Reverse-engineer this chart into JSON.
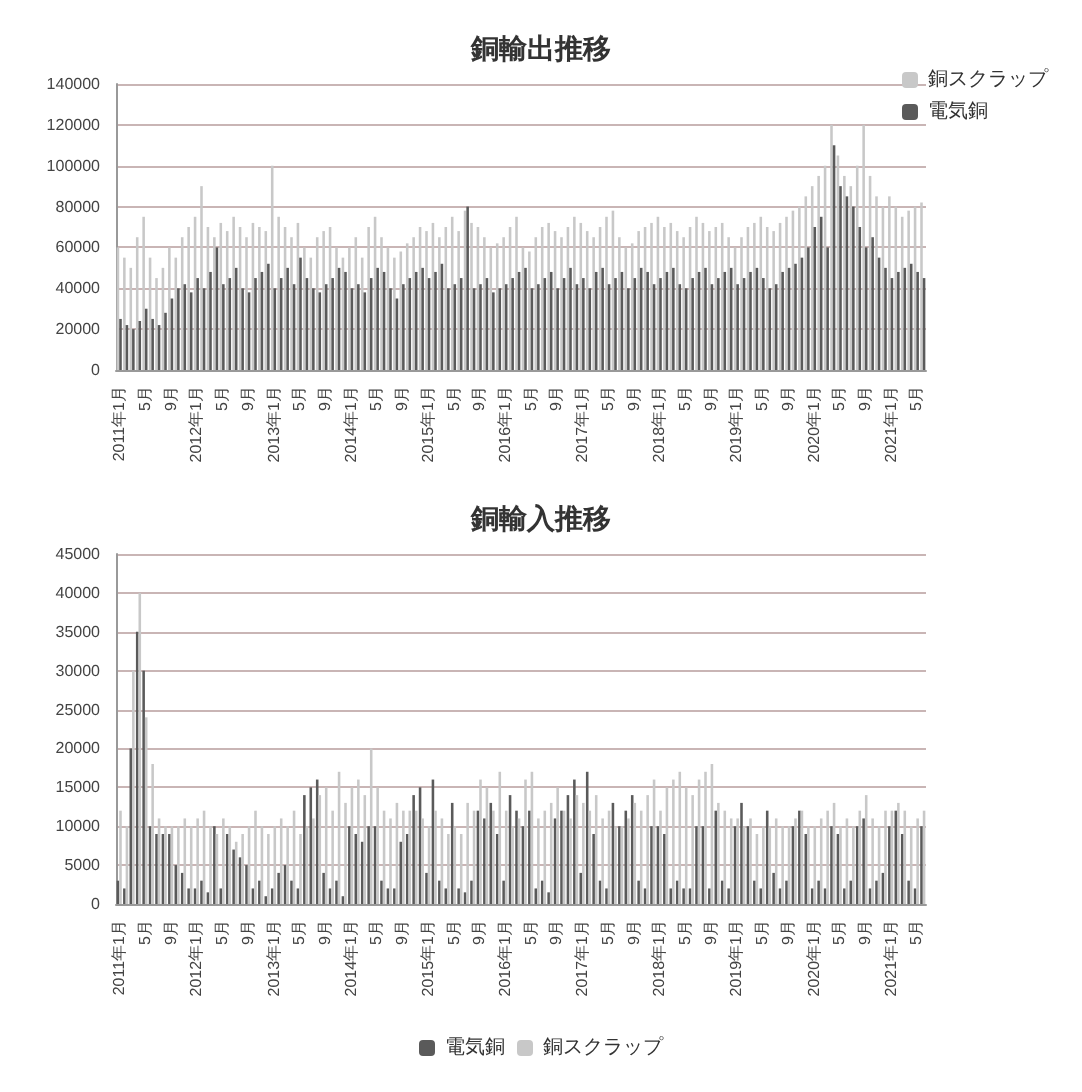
{
  "chart_data": [
    {
      "type": "bar",
      "title": "銅輸出推移",
      "categories": [
        "2011年1月",
        null,
        null,
        null,
        "5月",
        null,
        null,
        null,
        "9月",
        null,
        null,
        null,
        "2012年1月",
        null,
        null,
        null,
        "5月",
        null,
        null,
        null,
        "9月",
        null,
        null,
        null,
        "2013年1月",
        null,
        null,
        null,
        "5月",
        null,
        null,
        null,
        "9月",
        null,
        null,
        null,
        "2014年1月",
        null,
        null,
        null,
        "5月",
        null,
        null,
        null,
        "9月",
        null,
        null,
        null,
        "2015年1月",
        null,
        null,
        null,
        "5月",
        null,
        null,
        null,
        "9月",
        null,
        null,
        null,
        "2016年1月",
        null,
        null,
        null,
        "5月",
        null,
        null,
        null,
        "9月",
        null,
        null,
        null,
        "2017年1月",
        null,
        null,
        null,
        "5月",
        null,
        null,
        null,
        "9月",
        null,
        null,
        null,
        "2018年1月",
        null,
        null,
        null,
        "5月",
        null,
        null,
        null,
        "9月",
        null,
        null,
        null,
        "2019年1月",
        null,
        null,
        null,
        "5月",
        null,
        null,
        null,
        "9月",
        null,
        null,
        null,
        "2020年1月",
        null,
        null,
        null,
        "5月",
        null,
        null,
        null,
        "9月",
        null,
        null,
        null,
        "2021年1月",
        null,
        null,
        null,
        "5月",
        null
      ],
      "series": [
        {
          "name": "銅スクラップ",
          "color": "#c8c8c8",
          "values": [
            60000,
            55000,
            50000,
            65000,
            75000,
            55000,
            45000,
            50000,
            60000,
            55000,
            65000,
            70000,
            75000,
            90000,
            70000,
            65000,
            72000,
            68000,
            75000,
            70000,
            65000,
            72000,
            70000,
            68000,
            100000,
            75000,
            70000,
            65000,
            72000,
            60000,
            55000,
            65000,
            68000,
            70000,
            60000,
            55000,
            60000,
            65000,
            55000,
            70000,
            75000,
            65000,
            60000,
            55000,
            58000,
            62000,
            65000,
            70000,
            68000,
            72000,
            65000,
            70000,
            75000,
            68000,
            78000,
            72000,
            70000,
            65000,
            60000,
            62000,
            65000,
            70000,
            75000,
            60000,
            58000,
            65000,
            70000,
            72000,
            68000,
            65000,
            70000,
            75000,
            72000,
            68000,
            65000,
            70000,
            75000,
            78000,
            65000,
            60000,
            62000,
            68000,
            70000,
            72000,
            75000,
            70000,
            72000,
            68000,
            65000,
            70000,
            75000,
            72000,
            68000,
            70000,
            72000,
            65000,
            60000,
            65000,
            70000,
            72000,
            75000,
            70000,
            68000,
            72000,
            75000,
            78000,
            80000,
            85000,
            90000,
            95000,
            100000,
            120000,
            105000,
            95000,
            90000,
            100000,
            120000,
            95000,
            85000,
            80000,
            85000,
            80000,
            75000,
            78000,
            80000,
            82000
          ]
        },
        {
          "name": "電気銅",
          "color": "#5a5a5a",
          "values": [
            25000,
            22000,
            20000,
            24000,
            30000,
            25000,
            22000,
            28000,
            35000,
            40000,
            42000,
            38000,
            45000,
            40000,
            48000,
            60000,
            42000,
            45000,
            50000,
            40000,
            38000,
            45000,
            48000,
            52000,
            40000,
            45000,
            50000,
            42000,
            55000,
            45000,
            40000,
            38000,
            42000,
            45000,
            50000,
            48000,
            40000,
            42000,
            38000,
            45000,
            50000,
            48000,
            40000,
            35000,
            42000,
            45000,
            48000,
            50000,
            45000,
            48000,
            52000,
            40000,
            42000,
            45000,
            80000,
            40000,
            42000,
            45000,
            38000,
            40000,
            42000,
            45000,
            48000,
            50000,
            40000,
            42000,
            45000,
            48000,
            40000,
            45000,
            50000,
            42000,
            45000,
            40000,
            48000,
            50000,
            42000,
            45000,
            48000,
            40000,
            45000,
            50000,
            48000,
            42000,
            45000,
            48000,
            50000,
            42000,
            40000,
            45000,
            48000,
            50000,
            42000,
            45000,
            48000,
            50000,
            42000,
            45000,
            48000,
            50000,
            45000,
            40000,
            42000,
            48000,
            50000,
            52000,
            55000,
            60000,
            70000,
            75000,
            60000,
            110000,
            90000,
            85000,
            80000,
            70000,
            60000,
            65000,
            55000,
            50000,
            45000,
            48000,
            50000,
            52000,
            48000,
            45000
          ]
        }
      ],
      "ylim": [
        0,
        140000
      ],
      "yticks": [
        0,
        20000,
        40000,
        60000,
        80000,
        100000,
        120000,
        140000
      ],
      "grid": "y",
      "legend": "top right"
    },
    {
      "type": "bar",
      "title": "銅輸入推移",
      "categories": [
        "2011年1月",
        null,
        null,
        null,
        "5月",
        null,
        null,
        null,
        "9月",
        null,
        null,
        null,
        "2012年1月",
        null,
        null,
        null,
        "5月",
        null,
        null,
        null,
        "9月",
        null,
        null,
        null,
        "2013年1月",
        null,
        null,
        null,
        "5月",
        null,
        null,
        null,
        "9月",
        null,
        null,
        null,
        "2014年1月",
        null,
        null,
        null,
        "5月",
        null,
        null,
        null,
        "9月",
        null,
        null,
        null,
        "2015年1月",
        null,
        null,
        null,
        "5月",
        null,
        null,
        null,
        "9月",
        null,
        null,
        null,
        "2016年1月",
        null,
        null,
        null,
        "5月",
        null,
        null,
        null,
        "9月",
        null,
        null,
        null,
        "2017年1月",
        null,
        null,
        null,
        "5月",
        null,
        null,
        null,
        "9月",
        null,
        null,
        null,
        "2018年1月",
        null,
        null,
        null,
        "5月",
        null,
        null,
        null,
        "9月",
        null,
        null,
        null,
        "2019年1月",
        null,
        null,
        null,
        "5月",
        null,
        null,
        null,
        "9月",
        null,
        null,
        null,
        "2020年1月",
        null,
        null,
        null,
        "5月",
        null,
        null,
        null,
        "9月",
        null,
        null,
        null,
        "2021年1月",
        null,
        null,
        null,
        "5月",
        null
      ],
      "series": [
        {
          "name": "電気銅",
          "color": "#5a5a5a",
          "values": [
            3000,
            2000,
            20000,
            35000,
            30000,
            10000,
            9000,
            9000,
            9000,
            5000,
            4000,
            2000,
            2000,
            3000,
            1500,
            10000,
            2000,
            9000,
            7000,
            6000,
            5000,
            2000,
            3000,
            1000,
            2000,
            4000,
            5000,
            3000,
            2000,
            14000,
            15000,
            16000,
            4000,
            2000,
            3000,
            1000,
            10000,
            9000,
            8000,
            10000,
            10000,
            3000,
            2000,
            2000,
            8000,
            9000,
            14000,
            15000,
            4000,
            16000,
            3000,
            2000,
            13000,
            2000,
            1500,
            3000,
            12000,
            11000,
            13000,
            9000,
            3000,
            14000,
            12000,
            10000,
            12000,
            2000,
            3000,
            1500,
            11000,
            12000,
            14000,
            16000,
            4000,
            17000,
            9000,
            3000,
            2000,
            13000,
            10000,
            12000,
            14000,
            3000,
            2000,
            10000,
            10000,
            9000,
            2000,
            3000,
            2000,
            2000,
            10000,
            10000,
            2000,
            12000,
            3000,
            2000,
            10000,
            13000,
            10000,
            3000,
            2000,
            12000,
            4000,
            2000,
            3000,
            10000,
            12000,
            9000,
            2000,
            3000,
            2000,
            10000,
            9000,
            2000,
            3000,
            10000,
            11000,
            2000,
            3000,
            4000,
            10000,
            12000,
            9000,
            3000,
            2000,
            10000
          ]
        },
        {
          "name": "銅スクラップ",
          "color": "#c8c8c8",
          "values": [
            12000,
            10000,
            30000,
            40000,
            24000,
            18000,
            11000,
            10000,
            10000,
            10000,
            11000,
            10000,
            11000,
            12000,
            10000,
            9000,
            11000,
            10000,
            8000,
            9000,
            10000,
            12000,
            10000,
            9000,
            10000,
            11000,
            10000,
            12000,
            9000,
            10000,
            11000,
            14000,
            15000,
            12000,
            17000,
            13000,
            15000,
            16000,
            14000,
            20000,
            15000,
            12000,
            11000,
            13000,
            12000,
            12000,
            12000,
            11000,
            10000,
            12000,
            11000,
            9000,
            10000,
            9000,
            13000,
            12000,
            16000,
            15000,
            12000,
            17000,
            12000,
            10000,
            11000,
            16000,
            17000,
            11000,
            12000,
            13000,
            15000,
            12000,
            11000,
            14000,
            13000,
            12000,
            14000,
            11000,
            12000,
            10000,
            10000,
            11000,
            13000,
            12000,
            14000,
            16000,
            12000,
            15000,
            16000,
            17000,
            15000,
            14000,
            16000,
            17000,
            18000,
            13000,
            12000,
            11000,
            11000,
            10000,
            11000,
            9000,
            10000,
            10000,
            11000,
            10000,
            10000,
            11000,
            12000,
            10000,
            10000,
            11000,
            12000,
            13000,
            10000,
            11000,
            10000,
            12000,
            14000,
            11000,
            10000,
            12000,
            12000,
            13000,
            12000,
            10000,
            11000,
            12000
          ]
        }
      ],
      "ylim": [
        0,
        45000
      ],
      "yticks": [
        0,
        5000,
        10000,
        15000,
        20000,
        25000,
        30000,
        35000,
        40000,
        45000
      ],
      "grid": "y",
      "legend": "bottom"
    }
  ]
}
